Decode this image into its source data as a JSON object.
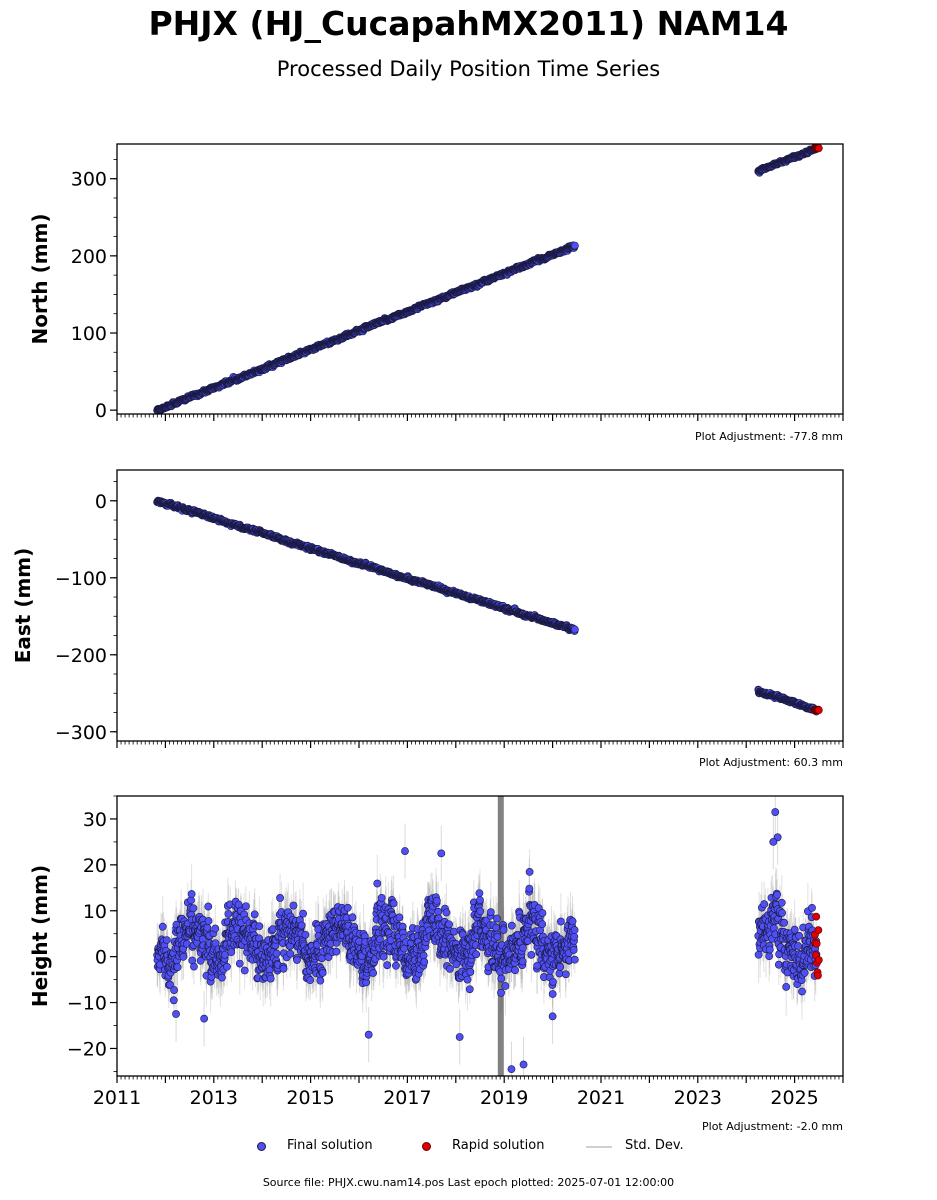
{
  "figure": {
    "title": "PHJX (HJ_CucapahMX2011) NAM14",
    "subtitle": "Processed Daily Position Time Series",
    "source_text": "Source file: PHJX.cwu.nam14.pos  Last epoch plotted: 2025-07-01 12:00:00"
  },
  "legend": {
    "final_label": "Final solution",
    "rapid_label": "Rapid solution",
    "std_label": "Std. Dev."
  },
  "colors": {
    "final": "#4f4ff5",
    "rapid": "#e00000",
    "std": "#aaaaaa",
    "marker_edge": "#1a1a40"
  },
  "chart_data": [
    {
      "type": "scatter",
      "ylabel": "North (mm)",
      "xlim": [
        2011.0,
        2026.0
      ],
      "ylim": [
        -5,
        345
      ],
      "yticks": [
        0,
        100,
        200,
        300
      ],
      "adjustment_text": "Plot Adjustment: -77.8 mm",
      "segments": [
        {
          "start": 2011.83,
          "end": 2020.46,
          "y_start": 0,
          "y_end": 213,
          "noise_mm": 2.0,
          "std_mm": 1.5
        },
        {
          "start": 2024.25,
          "end": 2025.45,
          "y_start": 310,
          "y_end": 339,
          "noise_mm": 1.5,
          "std_mm": 1.5
        }
      ],
      "rapid": {
        "start": 2025.42,
        "end": 2025.5,
        "y": 340
      }
    },
    {
      "type": "scatter",
      "ylabel": "East (mm)",
      "xlim": [
        2011.0,
        2026.0
      ],
      "ylim": [
        -312,
        40
      ],
      "yticks": [
        -300,
        -200,
        -100,
        0
      ],
      "adjustment_text": "Plot Adjustment: 60.3 mm",
      "segments": [
        {
          "start": 2011.83,
          "end": 2020.46,
          "y_start": 0,
          "y_end": -168,
          "noise_mm": 2.0,
          "std_mm": 1.5
        },
        {
          "start": 2024.25,
          "end": 2025.45,
          "y_start": -247,
          "y_end": -272,
          "noise_mm": 2.0,
          "std_mm": 1.5
        }
      ],
      "rapid": {
        "start": 2025.42,
        "end": 2025.5,
        "y": -272
      }
    },
    {
      "type": "scatter",
      "ylabel": "Height (mm)",
      "xlim": [
        2011.0,
        2026.0
      ],
      "ylim": [
        -26,
        35
      ],
      "yticks": [
        -20,
        -10,
        0,
        10,
        20,
        30
      ],
      "xticks": [
        2011,
        2013,
        2015,
        2017,
        2019,
        2021,
        2023,
        2025
      ],
      "xticklabels": [
        "2011",
        "2013",
        "2015",
        "2017",
        "2019",
        "2021",
        "2023",
        "2025"
      ],
      "adjustment_text": "Plot Adjustment: -2.0 mm",
      "segments": [
        {
          "start": 2011.83,
          "end": 2020.46,
          "y_start": 3,
          "y_end": 3,
          "noise_mm": 6.0,
          "std_mm": 5.0
        },
        {
          "start": 2024.25,
          "end": 2025.45,
          "y_start": 5,
          "y_end": 2,
          "noise_mm": 6.5,
          "std_mm": 5.0
        }
      ],
      "rapid": {
        "start": 2025.42,
        "end": 2025.5,
        "y": 2,
        "noise_mm": 3.5
      },
      "outliers": [
        {
          "x": 2016.2,
          "y": -17
        },
        {
          "x": 2016.95,
          "y": 23
        },
        {
          "x": 2017.7,
          "y": 22.5
        },
        {
          "x": 2018.08,
          "y": -17.5
        },
        {
          "x": 2019.15,
          "y": -24.5
        },
        {
          "x": 2019.4,
          "y": -23.5
        },
        {
          "x": 2012.22,
          "y": -12.5
        },
        {
          "x": 2012.8,
          "y": -13.5
        },
        {
          "x": 2024.6,
          "y": 31.5
        },
        {
          "x": 2024.65,
          "y": 26
        },
        {
          "x": 2024.56,
          "y": 25
        },
        {
          "x": 2020.0,
          "y": -13
        }
      ]
    }
  ]
}
